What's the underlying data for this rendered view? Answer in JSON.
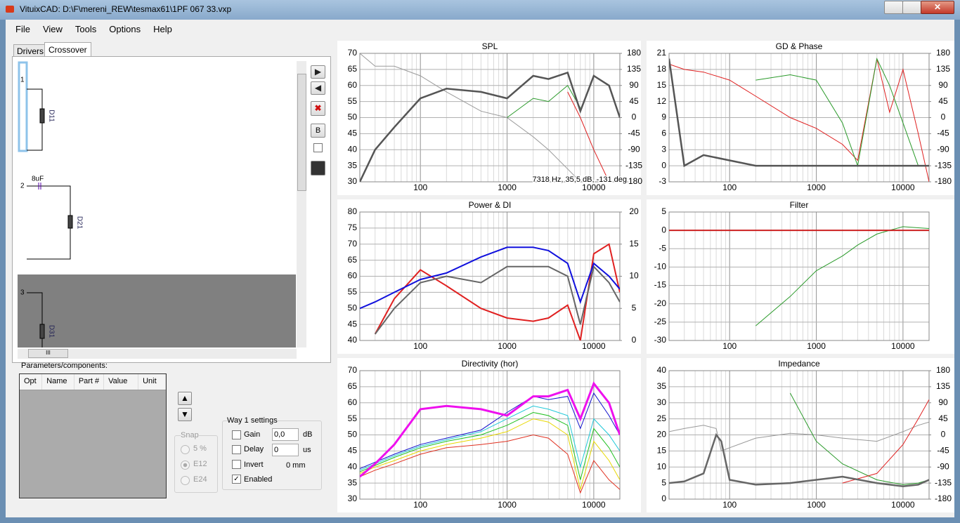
{
  "window": {
    "title": "VituixCAD: D:\\F\\mereni_REW\\tesmax61\\1PF 067 33.vxp"
  },
  "menu": [
    "File",
    "View",
    "Tools",
    "Options",
    "Help"
  ],
  "tabs": [
    "Drivers",
    "Crossover"
  ],
  "schematic": {
    "ways": [
      "1",
      "2",
      "3"
    ],
    "drivers": [
      "D11",
      "D21",
      "D31"
    ],
    "capacitor": "8uF"
  },
  "side_buttons": {
    "balance": "B"
  },
  "scrollbar": {
    "grip": "III"
  },
  "parameters": {
    "label": "Parameters/components:",
    "headers": [
      "Opt",
      "Name",
      "Part #",
      "Value",
      "Unit"
    ]
  },
  "snap": {
    "title": "Snap",
    "options": [
      "5 %",
      "E12",
      "E24"
    ]
  },
  "way_settings": {
    "title": "Way 1 settings",
    "gain": {
      "label": "Gain",
      "value": "0,0",
      "unit": "dB"
    },
    "delay": {
      "label": "Delay",
      "value": "0",
      "unit": "us"
    },
    "invert": {
      "label": "Invert",
      "value": "0 mm"
    },
    "enabled": {
      "label": "Enabled"
    }
  },
  "chart_data": [
    {
      "type": "line",
      "title": "SPL",
      "log_x": true,
      "grid": true,
      "annotation": "7318 Hz, 35,5 dB, -131 deg",
      "x": [
        20,
        30,
        50,
        100,
        200,
        500,
        1000,
        2000,
        3000,
        5000,
        7000,
        10000,
        15000,
        20000
      ],
      "xlim": [
        20,
        20000
      ],
      "xticks": [
        100,
        1000,
        10000
      ],
      "ylim": [
        30,
        70
      ],
      "yticks": [
        30,
        35,
        40,
        45,
        50,
        55,
        60,
        65,
        70
      ],
      "y2lim": [
        -180,
        180
      ],
      "y2ticks": [
        -180,
        -135,
        -90,
        -45,
        0,
        45,
        90,
        135,
        180
      ],
      "series": [
        {
          "color": "#9a9a9a",
          "linewidth": 1,
          "values": [
            70,
            66,
            66,
            63,
            58,
            52,
            50,
            44,
            40,
            34,
            30,
            null,
            null,
            null
          ]
        },
        {
          "color": "#2a9a2a",
          "linewidth": 1,
          "values": [
            null,
            null,
            null,
            null,
            null,
            null,
            50,
            56,
            55,
            60,
            53,
            null,
            null,
            null
          ]
        },
        {
          "color": "#e02020",
          "linewidth": 1,
          "values": [
            null,
            null,
            null,
            null,
            null,
            null,
            null,
            null,
            null,
            58,
            50,
            40,
            30,
            null
          ]
        },
        {
          "color": "#555555",
          "linewidth": 2.5,
          "values": [
            30,
            40,
            47,
            56,
            59,
            58,
            56,
            63,
            62,
            64,
            52,
            63,
            60,
            50
          ]
        }
      ]
    },
    {
      "type": "line",
      "title": "GD & Phase",
      "log_x": true,
      "grid": true,
      "x": [
        20,
        30,
        50,
        100,
        200,
        500,
        1000,
        2000,
        3000,
        5000,
        7000,
        10000,
        15000,
        20000
      ],
      "xlim": [
        20,
        20000
      ],
      "xticks": [
        100,
        1000,
        10000
      ],
      "ylim": [
        -3,
        21
      ],
      "yticks": [
        -3,
        0,
        3,
        6,
        9,
        12,
        15,
        18,
        21
      ],
      "y2lim": [
        -180,
        180
      ],
      "y2ticks": [
        -180,
        -135,
        -90,
        -45,
        0,
        45,
        90,
        135,
        180
      ],
      "series": [
        {
          "color": "#e02020",
          "linewidth": 1,
          "values": [
            19,
            18,
            17.5,
            16,
            13,
            9,
            7,
            4,
            1,
            20,
            10,
            18,
            6,
            -3
          ]
        },
        {
          "color": "#2a9a2a",
          "linewidth": 1,
          "values": [
            null,
            null,
            null,
            null,
            16,
            17,
            16,
            8,
            0,
            20,
            15,
            8,
            0,
            null
          ]
        },
        {
          "color": "#555555",
          "linewidth": 2.5,
          "values": [
            20,
            0,
            2,
            1,
            0,
            0,
            0,
            0,
            0,
            0,
            0,
            0,
            0,
            0
          ]
        }
      ]
    },
    {
      "type": "line",
      "title": "Power & DI",
      "log_x": true,
      "grid": true,
      "x": [
        20,
        30,
        50,
        100,
        200,
        500,
        1000,
        2000,
        3000,
        5000,
        7000,
        10000,
        15000,
        20000
      ],
      "xlim": [
        20,
        20000
      ],
      "xticks": [
        100,
        1000,
        10000
      ],
      "ylim": [
        40,
        80
      ],
      "yticks": [
        40,
        45,
        50,
        55,
        60,
        65,
        70,
        75,
        80
      ],
      "y2lim": [
        0,
        20
      ],
      "y2ticks": [
        0,
        5,
        10,
        15,
        20
      ],
      "series": [
        {
          "color": "#e02020",
          "linewidth": 2,
          "values": [
            null,
            42,
            53,
            62,
            57,
            50,
            47,
            46,
            47,
            51,
            40,
            67,
            70,
            55
          ]
        },
        {
          "color": "#666666",
          "linewidth": 2,
          "values": [
            null,
            42,
            50,
            58,
            60,
            58,
            63,
            63,
            63,
            60,
            45,
            63,
            58,
            52
          ]
        },
        {
          "color": "#1010dd",
          "linewidth": 2,
          "values": [
            50,
            52,
            55,
            59,
            61,
            66,
            69,
            69,
            68,
            64,
            52,
            64,
            60,
            56
          ]
        }
      ]
    },
    {
      "type": "line",
      "title": "Filter",
      "log_x": true,
      "grid": true,
      "x": [
        20,
        30,
        50,
        100,
        200,
        500,
        1000,
        2000,
        3000,
        5000,
        7000,
        10000,
        15000,
        20000
      ],
      "xlim": [
        20,
        20000
      ],
      "xticks": [
        100,
        1000,
        10000
      ],
      "ylim": [
        -30,
        5
      ],
      "yticks": [
        -30,
        -25,
        -20,
        -15,
        -10,
        -5,
        0,
        5
      ],
      "series": [
        {
          "color": "#2a9a2a",
          "linewidth": 1,
          "values": [
            null,
            null,
            null,
            null,
            -26,
            -18,
            -11,
            -7,
            -4,
            -1,
            0,
            1,
            0.7,
            0.5
          ]
        },
        {
          "color": "#cc2020",
          "linewidth": 2,
          "values": [
            0,
            0,
            0,
            0,
            0,
            0,
            0,
            0,
            0,
            0,
            0,
            0,
            0,
            0
          ]
        }
      ]
    },
    {
      "type": "line",
      "title": "Directivity (hor)",
      "log_x": true,
      "grid": true,
      "x": [
        20,
        30,
        50,
        100,
        200,
        500,
        1000,
        2000,
        3000,
        5000,
        7000,
        10000,
        15000,
        20000
      ],
      "xlim": [
        20,
        20000
      ],
      "xticks": [
        100,
        1000,
        10000
      ],
      "ylim": [
        30,
        70
      ],
      "yticks": [
        30,
        35,
        40,
        45,
        50,
        55,
        60,
        65,
        70
      ],
      "series": [
        {
          "color": "#e03020",
          "linewidth": 1,
          "values": [
            37,
            39,
            41,
            44,
            46,
            47,
            48,
            50,
            49,
            44,
            32,
            42,
            36,
            33
          ]
        },
        {
          "color": "#e8d800",
          "linewidth": 1,
          "values": [
            38,
            40,
            42,
            45,
            47,
            49,
            51,
            55,
            54,
            50,
            33,
            48,
            42,
            36
          ]
        },
        {
          "color": "#20c020",
          "linewidth": 1,
          "values": [
            38.5,
            40.5,
            43,
            46,
            48,
            50,
            53,
            57,
            56,
            53,
            36,
            52,
            46,
            40
          ]
        },
        {
          "color": "#20c8d8",
          "linewidth": 1,
          "values": [
            39,
            41,
            43.5,
            46.5,
            48.5,
            51,
            55,
            59,
            58,
            56,
            40,
            55,
            50,
            45
          ]
        },
        {
          "color": "#1010cc",
          "linewidth": 1,
          "values": [
            39.5,
            41.5,
            44,
            47,
            49,
            51.5,
            57,
            62,
            61,
            62,
            52,
            63,
            56,
            50
          ]
        },
        {
          "color": "#ee10ee",
          "linewidth": 3,
          "values": [
            37,
            41,
            47,
            58,
            59,
            58,
            56,
            62,
            62,
            64,
            55,
            66,
            60,
            50
          ]
        }
      ]
    },
    {
      "type": "line",
      "title": "Impedance",
      "log_x": true,
      "grid": true,
      "x": [
        20,
        30,
        50,
        70,
        80,
        100,
        200,
        500,
        1000,
        2000,
        5000,
        10000,
        15000,
        20000
      ],
      "xlim": [
        20,
        20000
      ],
      "xticks": [
        100,
        1000,
        10000
      ],
      "ylim": [
        0,
        40
      ],
      "yticks": [
        0,
        5,
        10,
        15,
        20,
        25,
        30,
        35,
        40
      ],
      "y2lim": [
        -180,
        180
      ],
      "y2ticks": [
        -180,
        -135,
        -90,
        -45,
        0,
        45,
        90,
        135,
        180
      ],
      "series": [
        {
          "color": "#999999",
          "linewidth": 1,
          "values": [
            21,
            22,
            23,
            22,
            15,
            16,
            19,
            20.5,
            20,
            19,
            18,
            21,
            23,
            24
          ]
        },
        {
          "color": "#2a9a2a",
          "linewidth": 1,
          "values": [
            null,
            null,
            null,
            null,
            null,
            null,
            null,
            33,
            18,
            11,
            6,
            4.5,
            5,
            6
          ]
        },
        {
          "color": "#e02020",
          "linewidth": 1,
          "values": [
            null,
            null,
            null,
            null,
            null,
            null,
            null,
            null,
            null,
            5,
            8,
            17,
            25,
            31
          ]
        },
        {
          "color": "#666666",
          "linewidth": 2.5,
          "values": [
            5,
            5.5,
            8,
            20,
            18,
            6,
            4.5,
            5,
            6,
            7,
            5,
            4,
            4.5,
            6
          ]
        }
      ]
    }
  ]
}
